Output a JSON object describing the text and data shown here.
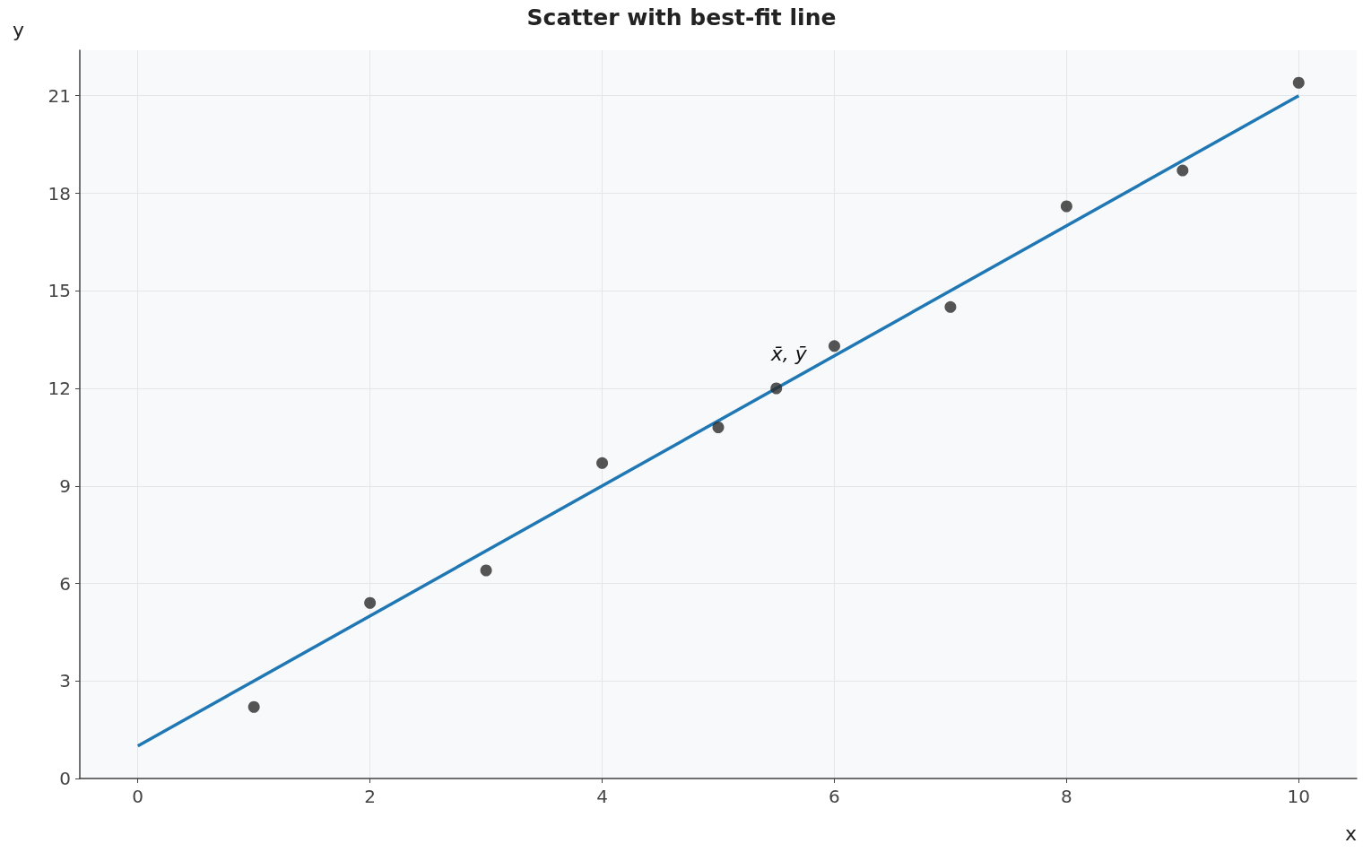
{
  "chart_data": {
    "type": "scatter",
    "title": "Scatter with best-fit line",
    "xlabel": "x",
    "ylabel": "y",
    "series": [
      {
        "color": "#2b2b2b",
        "x": [
          1,
          2,
          3,
          4,
          5,
          5.5,
          6,
          7,
          8,
          9,
          10
        ],
        "values": [
          2.2,
          5.4,
          6.4,
          9.7,
          10.8,
          12.0,
          13.3,
          14.5,
          17.6,
          18.7,
          21.4
        ]
      },
      {
        "type": "line",
        "marker": "none",
        "color": "#1f77b4",
        "x": [
          0,
          10
        ],
        "values": [
          1,
          21
        ]
      }
    ],
    "annotations": [
      {
        "text": "x̄, ȳ",
        "x": 5.5,
        "y": 12.0
      }
    ],
    "xlim": [
      -0.5,
      10.5
    ],
    "ylim": [
      0,
      22.4
    ],
    "xticks": [
      0,
      2,
      4,
      6,
      8,
      10
    ],
    "yticks": [
      0,
      3,
      6,
      9,
      12,
      15,
      18,
      21
    ],
    "grid": true,
    "marker": "circle"
  }
}
